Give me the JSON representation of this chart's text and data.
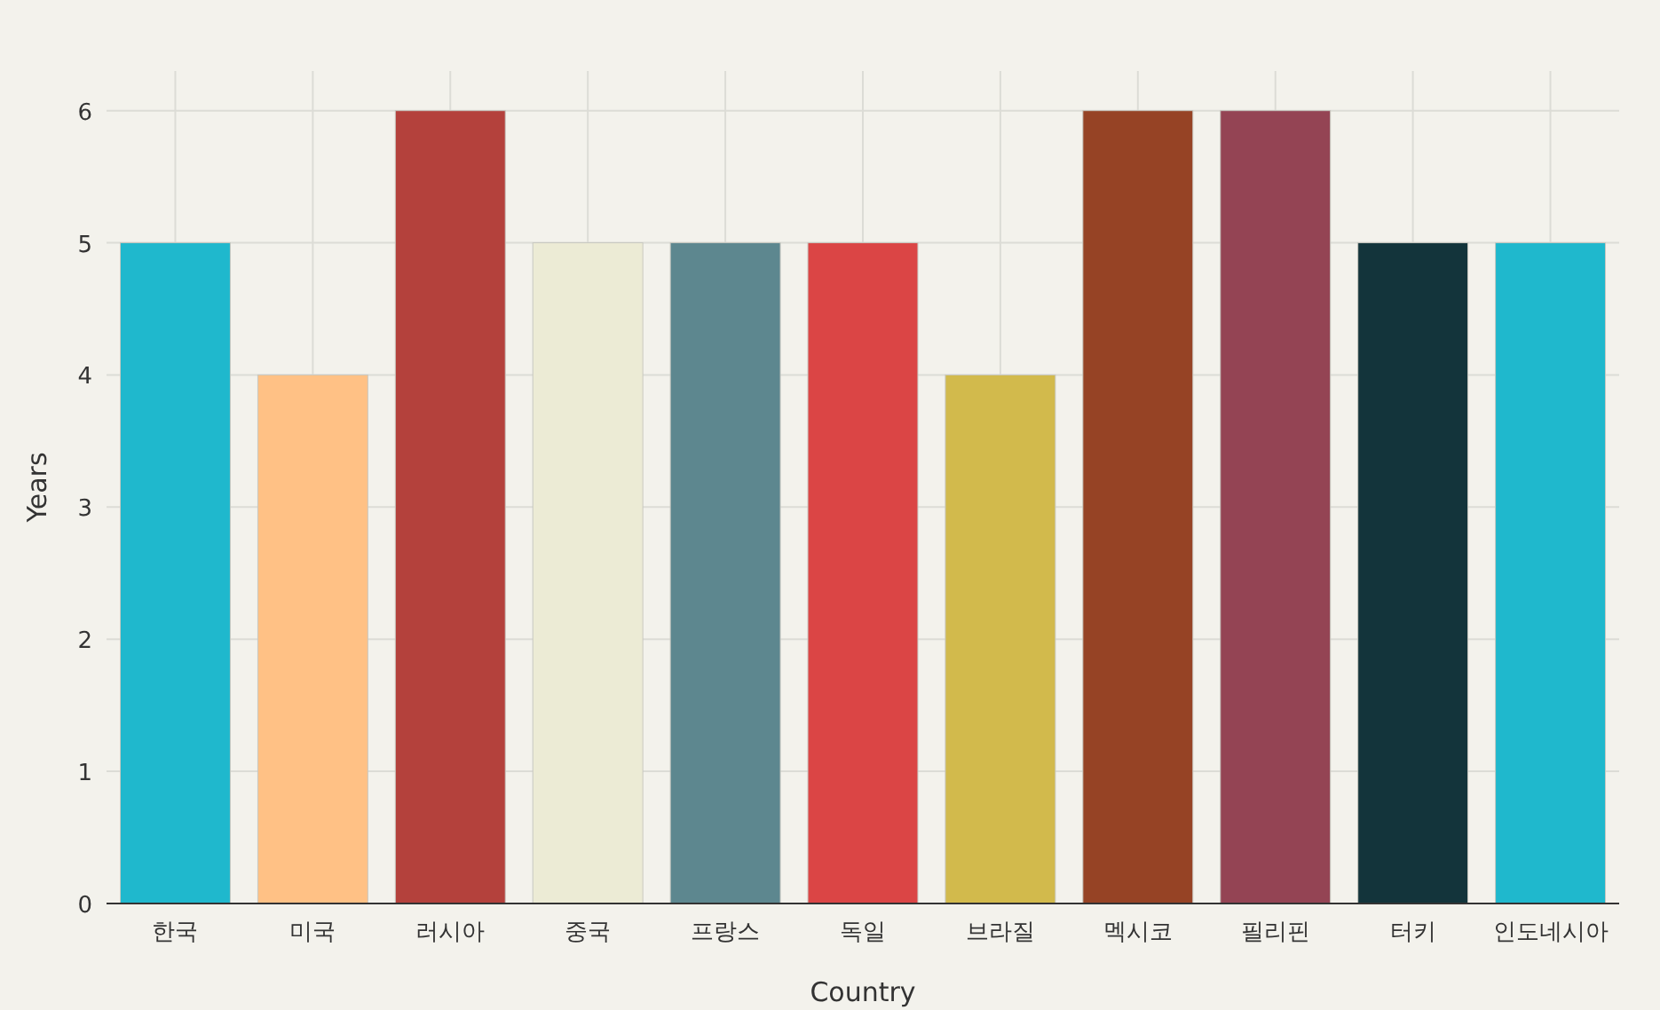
{
  "chart_data": {
    "type": "bar",
    "xlabel": "Country",
    "ylabel": "Years",
    "categories": [
      "한국",
      "미국",
      "러시아",
      "중국",
      "프랑스",
      "독일",
      "브라질",
      "멕시코",
      "필리핀",
      "터키",
      "인도네시아"
    ],
    "values": [
      5,
      4,
      6,
      5,
      5,
      5,
      4,
      6,
      6,
      5,
      5
    ],
    "colors": [
      "#1fb8cd",
      "#ffc185",
      "#b4413c",
      "#ecebd5",
      "#5d878f",
      "#db4545",
      "#d2ba4c",
      "#964325",
      "#944454",
      "#13343b",
      "#1fb8cd"
    ],
    "ylim": [
      0,
      6.3
    ],
    "yticks": [
      0,
      1,
      2,
      3,
      4,
      5,
      6
    ],
    "grid": true
  }
}
